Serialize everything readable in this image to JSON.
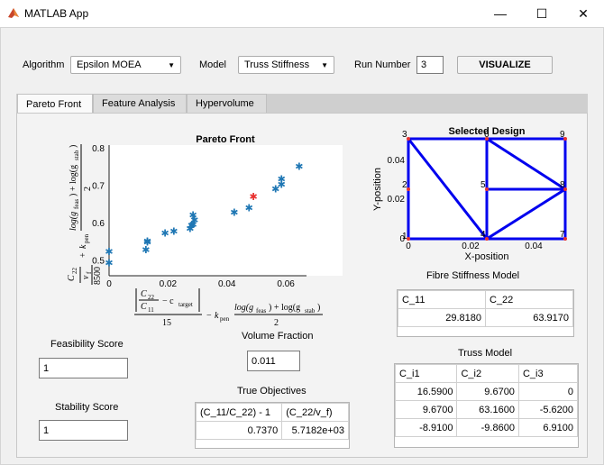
{
  "window": {
    "title": "MATLAB App",
    "minimize": "—",
    "maximize": "☐",
    "close": "✕"
  },
  "controls": {
    "algorithm_label": "Algorithm",
    "algorithm_value": "Epsilon MOEA",
    "model_label": "Model",
    "model_value": "Truss Stiffness",
    "run_label": "Run Number",
    "run_value": "3",
    "visualize_label": "VISUALIZE"
  },
  "tabs": [
    "Pareto Front",
    "Feature Analysis",
    "Hypervolume"
  ],
  "pareto": {
    "title": "Pareto Front",
    "xticks": [
      "0",
      "0.02",
      "0.04",
      "0.06"
    ],
    "yticks": [
      "0.5",
      "0.6",
      "0.7",
      "0.8"
    ]
  },
  "chart_data": {
    "type": "scatter",
    "title": "Pareto Front",
    "xlim": [
      0,
      0.067
    ],
    "ylim": [
      0.46,
      0.81
    ],
    "series": [
      {
        "color": "#1f77b4",
        "marker": "star",
        "points": [
          [
            0,
            0.525
          ],
          [
            0,
            0.495
          ],
          [
            0.0125,
            0.53
          ],
          [
            0.013,
            0.553
          ],
          [
            0.013,
            0.55
          ],
          [
            0.019,
            0.575
          ],
          [
            0.022,
            0.58
          ],
          [
            0.0275,
            0.587
          ],
          [
            0.028,
            0.595
          ],
          [
            0.0285,
            0.598
          ],
          [
            0.029,
            0.61
          ],
          [
            0.0285,
            0.623
          ],
          [
            0.0425,
            0.63
          ],
          [
            0.0475,
            0.642
          ],
          [
            0.0565,
            0.693
          ],
          [
            0.0585,
            0.705
          ],
          [
            0.0585,
            0.72
          ],
          [
            0.0645,
            0.753
          ]
        ]
      },
      {
        "color": "#e8312f",
        "marker": "star",
        "points": [
          [
            0.049,
            0.672
          ]
        ]
      }
    ]
  },
  "design": {
    "title": "Selected  Design",
    "xlabel": "X-position",
    "ylabel": "Y-position",
    "xticks": [
      "0",
      "0.02",
      "0.04"
    ],
    "yticks": [
      "0",
      "0.02",
      "0.04"
    ],
    "nodes": [
      "1",
      "2",
      "3",
      "4",
      "5",
      "6",
      "7",
      "8",
      "9"
    ]
  },
  "labels": {
    "feasibility": "Feasibility Score",
    "stability": "Stability Score",
    "volume": "Volume Fraction",
    "true_obj": "True Objectives",
    "fibre": "Fibre Stiffness Model",
    "truss": "Truss Model"
  },
  "values": {
    "feasibility": "1",
    "stability": "1",
    "volume": "0.011"
  },
  "true_objectives": {
    "headers": [
      "(C_11/C_22) - 1",
      "(C_22/v_f)"
    ],
    "row": [
      "0.7370",
      "5.7182e+03"
    ]
  },
  "fibre_table": {
    "headers": [
      "C_11",
      "C_22"
    ],
    "row": [
      "29.8180",
      "63.9170"
    ]
  },
  "truss_table": {
    "headers": [
      "C_i1",
      "C_i2",
      "C_i3"
    ],
    "rows": [
      [
        "16.5900",
        "9.6700",
        "0"
      ],
      [
        "9.6700",
        "63.1600",
        "-5.6200"
      ],
      [
        "-8.9100",
        "-9.8600",
        "6.9100"
      ]
    ]
  }
}
